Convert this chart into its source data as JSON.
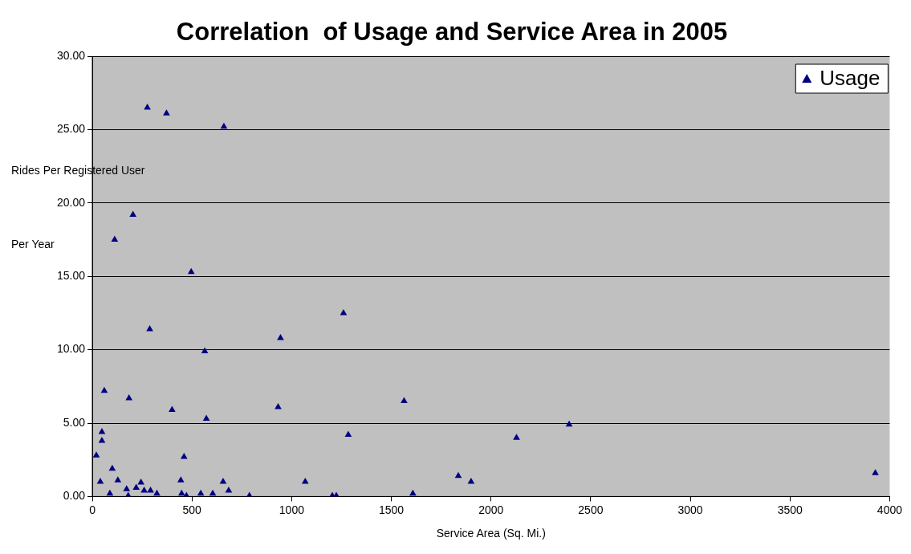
{
  "chart_data": {
    "type": "scatter",
    "title": "Correlation  of Usage and Service Area in 2005",
    "xlabel": "Service Area (Sq. Mi.)",
    "ylabel": "Rides Per Registered User Per Year",
    "series": [
      {
        "name": "Usage",
        "color": "#000080",
        "x": [
          20,
          40,
          48,
          48,
          60,
          88,
          100,
          112,
          128,
          172,
          180,
          184,
          204,
          220,
          244,
          260,
          276,
          288,
          292,
          324,
          372,
          400,
          444,
          448,
          460,
          472,
          496,
          544,
          564,
          572,
          604,
          656,
          660,
          684,
          788,
          932,
          944,
          1068,
          1204,
          1224,
          1260,
          1284,
          1564,
          1608,
          1836,
          1900,
          2128,
          2392,
          3928
        ],
        "values": [
          2.8,
          1.0,
          4.4,
          3.8,
          7.2,
          0.2,
          1.9,
          17.5,
          1.1,
          0.5,
          0.05,
          6.7,
          19.2,
          0.6,
          0.95,
          0.4,
          26.5,
          11.4,
          0.4,
          0.2,
          26.1,
          5.9,
          1.1,
          0.2,
          2.7,
          0.05,
          15.3,
          0.2,
          9.9,
          5.3,
          0.2,
          1.0,
          25.2,
          0.4,
          0.05,
          6.1,
          10.8,
          1.0,
          0.05,
          0.05,
          12.5,
          4.2,
          6.5,
          0.2,
          1.4,
          1.0,
          4.0,
          4.9,
          1.6
        ]
      }
    ],
    "xlim": [
      0,
      4000
    ],
    "xticks": [
      0,
      500,
      1000,
      1500,
      2000,
      2500,
      3000,
      3500,
      4000
    ],
    "ylim": [
      0,
      30
    ],
    "yticks": [
      {
        "value": 0,
        "label": "0.00"
      },
      {
        "value": 5,
        "label": "5.00"
      },
      {
        "value": 10,
        "label": "10.00"
      },
      {
        "value": 15,
        "label": "15.00"
      },
      {
        "value": 20,
        "label": "20.00"
      },
      {
        "value": 25,
        "label": "25.00"
      },
      {
        "value": 30,
        "label": "30.00"
      }
    ],
    "grid": "y",
    "legend": "top right",
    "marker": "triangle"
  }
}
